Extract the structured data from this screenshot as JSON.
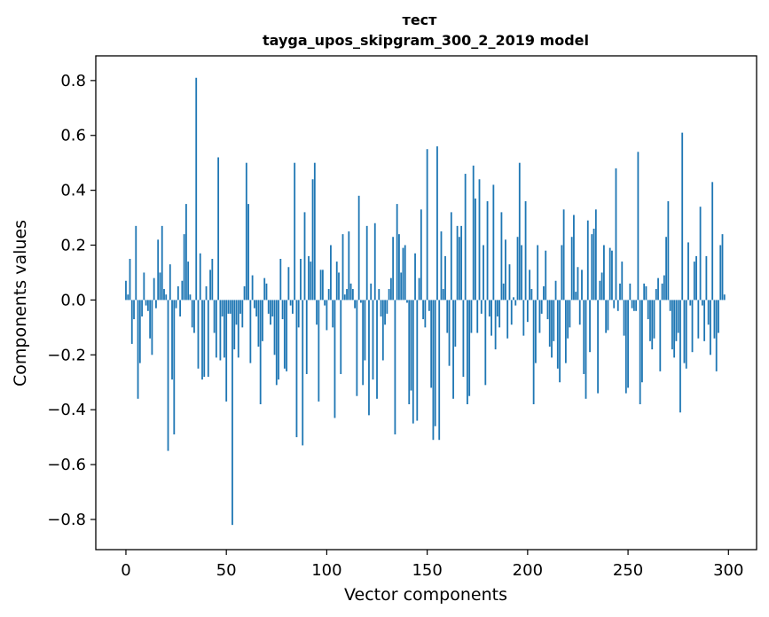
{
  "chart_data": {
    "type": "bar",
    "title": "тест",
    "subtitle": "tayga_upos_skipgram_300_2_2019 model",
    "xlabel": "Vector components",
    "ylabel": "Components values",
    "xlim": [
      -15,
      314
    ],
    "ylim": [
      -0.91,
      0.89
    ],
    "x_ticks": [
      0,
      50,
      100,
      150,
      200,
      250,
      300
    ],
    "x_tick_labels": [
      "0",
      "50",
      "100",
      "150",
      "200",
      "250",
      "300"
    ],
    "y_ticks": [
      0.8,
      0.6,
      0.4,
      0.2,
      0.0,
      -0.2,
      -0.4,
      -0.6,
      -0.8
    ],
    "y_tick_labels": [
      "0.8",
      "0.6",
      "0.4",
      "0.2",
      "0.0",
      "−0.2",
      "−0.4",
      "−0.6",
      "−0.8"
    ],
    "bar_color": "#1f77b4",
    "grid": false,
    "series": [
      {
        "x_start": 0,
        "values": [
          0.07,
          0.02,
          0.15,
          -0.16,
          -0.07,
          0.27,
          -0.36,
          -0.23,
          -0.06,
          0.1,
          -0.02,
          -0.04,
          -0.14,
          -0.2,
          0.08,
          -0.03,
          0.22,
          0.1,
          0.27,
          0.04,
          0.02,
          -0.55,
          0.13,
          -0.29,
          -0.49,
          -0.03,
          0.05,
          -0.06,
          0.07,
          0.24,
          0.35,
          0.14,
          0.02,
          -0.1,
          -0.12,
          0.81,
          -0.25,
          0.17,
          -0.29,
          -0.28,
          0.05,
          -0.28,
          0.11,
          0.15,
          -0.12,
          -0.21,
          0.52,
          -0.22,
          -0.06,
          -0.21,
          -0.37,
          -0.05,
          -0.05,
          -0.82,
          -0.18,
          -0.09,
          -0.21,
          -0.05,
          -0.1,
          0.05,
          0.5,
          0.35,
          -0.23,
          0.09,
          -0.03,
          -0.06,
          -0.17,
          -0.38,
          -0.15,
          0.08,
          0.06,
          -0.05,
          -0.09,
          -0.06,
          -0.2,
          -0.31,
          -0.29,
          0.15,
          -0.07,
          -0.25,
          -0.26,
          0.12,
          -0.02,
          -0.05,
          0.5,
          -0.5,
          -0.1,
          0.15,
          -0.53,
          0.32,
          -0.27,
          0.16,
          0.14,
          0.44,
          0.5,
          -0.09,
          -0.37,
          0.11,
          0.11,
          -0.02,
          -0.11,
          0.04,
          0.2,
          -0.1,
          -0.43,
          0.14,
          0.1,
          -0.27,
          0.24,
          0.02,
          0.04,
          0.25,
          0.06,
          0.04,
          -0.03,
          -0.35,
          0.38,
          -0.01,
          -0.31,
          -0.22,
          0.27,
          -0.42,
          0.06,
          -0.29,
          0.28,
          -0.36,
          0.04,
          -0.06,
          -0.22,
          -0.09,
          -0.05,
          0.04,
          0.08,
          0.23,
          -0.49,
          0.35,
          0.24,
          0.1,
          0.19,
          0.2,
          -0.01,
          -0.38,
          -0.33,
          -0.45,
          0.17,
          -0.44,
          0.08,
          0.33,
          -0.07,
          -0.1,
          0.55,
          -0.04,
          -0.32,
          -0.51,
          -0.46,
          0.56,
          -0.51,
          0.25,
          0.04,
          0.16,
          -0.12,
          -0.24,
          0.32,
          -0.36,
          -0.17,
          0.27,
          0.23,
          0.27,
          -0.28,
          0.46,
          -0.38,
          -0.35,
          -0.12,
          0.49,
          0.37,
          -0.12,
          0.44,
          -0.05,
          0.2,
          -0.31,
          0.36,
          -0.06,
          -0.13,
          0.42,
          -0.18,
          -0.06,
          -0.1,
          0.32,
          0.06,
          0.22,
          -0.14,
          0.13,
          -0.09,
          0.01,
          -0.02,
          0.23,
          0.5,
          0.2,
          -0.13,
          0.36,
          -0.08,
          0.11,
          0.04,
          -0.38,
          -0.23,
          0.2,
          -0.12,
          -0.05,
          0.05,
          0.18,
          -0.07,
          -0.17,
          -0.21,
          -0.15,
          0.07,
          -0.25,
          -0.3,
          0.2,
          0.33,
          -0.23,
          -0.14,
          -0.1,
          0.23,
          0.31,
          0.03,
          0.12,
          -0.09,
          0.11,
          -0.27,
          -0.36,
          0.29,
          -0.19,
          0.24,
          0.26,
          0.33,
          -0.34,
          0.07,
          0.1,
          0.2,
          -0.12,
          -0.11,
          0.19,
          0.18,
          -0.03,
          0.48,
          -0.04,
          0.06,
          0.14,
          -0.13,
          -0.34,
          -0.32,
          0.06,
          -0.03,
          -0.04,
          -0.04,
          0.54,
          -0.38,
          -0.3,
          0.06,
          0.05,
          -0.07,
          -0.15,
          -0.18,
          -0.14,
          0.04,
          0.08,
          -0.26,
          0.06,
          0.09,
          0.23,
          0.36,
          -0.04,
          -0.18,
          -0.21,
          -0.15,
          -0.12,
          -0.41,
          0.61,
          -0.23,
          -0.25,
          0.21,
          -0.02,
          -0.19,
          0.14,
          0.16,
          -0.14,
          0.34,
          -0.02,
          -0.15,
          0.16,
          -0.09,
          -0.2,
          0.43,
          -0.14,
          -0.26,
          -0.12,
          0.2,
          0.24,
          0.02
        ]
      }
    ]
  }
}
